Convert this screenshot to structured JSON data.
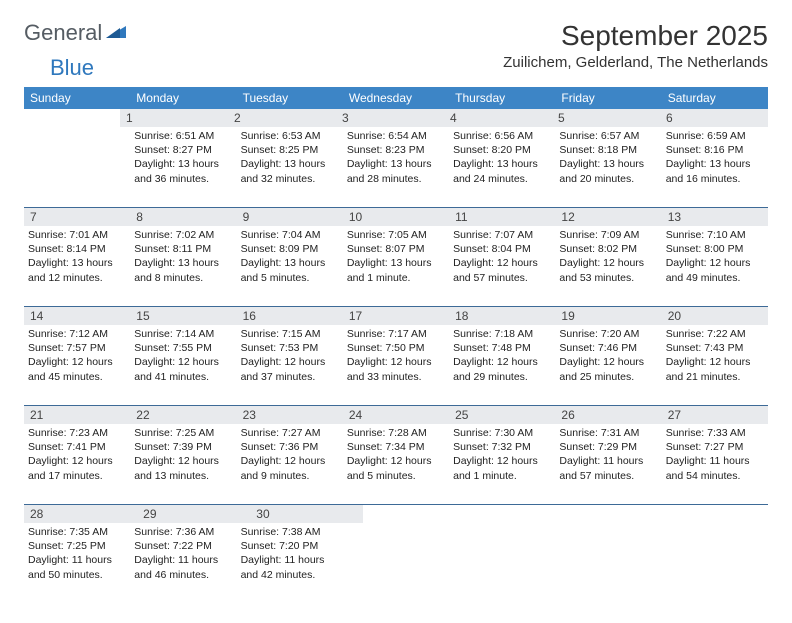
{
  "logo": {
    "general": "General",
    "blue": "Blue"
  },
  "header": {
    "title": "September 2025",
    "location": "Zuilichem, Gelderland, The Netherlands"
  },
  "colors": {
    "header_bg": "#3d85c6",
    "header_text": "#ffffff",
    "daynum_bg": "#e8eaed",
    "week_border": "#3d6a97",
    "logo_general": "#555c63",
    "logo_blue": "#2f78bd"
  },
  "dayNames": [
    "Sunday",
    "Monday",
    "Tuesday",
    "Wednesday",
    "Thursday",
    "Friday",
    "Saturday"
  ],
  "weeks": [
    {
      "nums": [
        "",
        "1",
        "2",
        "3",
        "4",
        "5",
        "6"
      ],
      "cells": [
        {
          "sunrise": "",
          "sunset": "",
          "daylight": ""
        },
        {
          "sunrise": "Sunrise: 6:51 AM",
          "sunset": "Sunset: 8:27 PM",
          "daylight": "Daylight: 13 hours and 36 minutes."
        },
        {
          "sunrise": "Sunrise: 6:53 AM",
          "sunset": "Sunset: 8:25 PM",
          "daylight": "Daylight: 13 hours and 32 minutes."
        },
        {
          "sunrise": "Sunrise: 6:54 AM",
          "sunset": "Sunset: 8:23 PM",
          "daylight": "Daylight: 13 hours and 28 minutes."
        },
        {
          "sunrise": "Sunrise: 6:56 AM",
          "sunset": "Sunset: 8:20 PM",
          "daylight": "Daylight: 13 hours and 24 minutes."
        },
        {
          "sunrise": "Sunrise: 6:57 AM",
          "sunset": "Sunset: 8:18 PM",
          "daylight": "Daylight: 13 hours and 20 minutes."
        },
        {
          "sunrise": "Sunrise: 6:59 AM",
          "sunset": "Sunset: 8:16 PM",
          "daylight": "Daylight: 13 hours and 16 minutes."
        }
      ]
    },
    {
      "nums": [
        "7",
        "8",
        "9",
        "10",
        "11",
        "12",
        "13"
      ],
      "cells": [
        {
          "sunrise": "Sunrise: 7:01 AM",
          "sunset": "Sunset: 8:14 PM",
          "daylight": "Daylight: 13 hours and 12 minutes."
        },
        {
          "sunrise": "Sunrise: 7:02 AM",
          "sunset": "Sunset: 8:11 PM",
          "daylight": "Daylight: 13 hours and 8 minutes."
        },
        {
          "sunrise": "Sunrise: 7:04 AM",
          "sunset": "Sunset: 8:09 PM",
          "daylight": "Daylight: 13 hours and 5 minutes."
        },
        {
          "sunrise": "Sunrise: 7:05 AM",
          "sunset": "Sunset: 8:07 PM",
          "daylight": "Daylight: 13 hours and 1 minute."
        },
        {
          "sunrise": "Sunrise: 7:07 AM",
          "sunset": "Sunset: 8:04 PM",
          "daylight": "Daylight: 12 hours and 57 minutes."
        },
        {
          "sunrise": "Sunrise: 7:09 AM",
          "sunset": "Sunset: 8:02 PM",
          "daylight": "Daylight: 12 hours and 53 minutes."
        },
        {
          "sunrise": "Sunrise: 7:10 AM",
          "sunset": "Sunset: 8:00 PM",
          "daylight": "Daylight: 12 hours and 49 minutes."
        }
      ]
    },
    {
      "nums": [
        "14",
        "15",
        "16",
        "17",
        "18",
        "19",
        "20"
      ],
      "cells": [
        {
          "sunrise": "Sunrise: 7:12 AM",
          "sunset": "Sunset: 7:57 PM",
          "daylight": "Daylight: 12 hours and 45 minutes."
        },
        {
          "sunrise": "Sunrise: 7:14 AM",
          "sunset": "Sunset: 7:55 PM",
          "daylight": "Daylight: 12 hours and 41 minutes."
        },
        {
          "sunrise": "Sunrise: 7:15 AM",
          "sunset": "Sunset: 7:53 PM",
          "daylight": "Daylight: 12 hours and 37 minutes."
        },
        {
          "sunrise": "Sunrise: 7:17 AM",
          "sunset": "Sunset: 7:50 PM",
          "daylight": "Daylight: 12 hours and 33 minutes."
        },
        {
          "sunrise": "Sunrise: 7:18 AM",
          "sunset": "Sunset: 7:48 PM",
          "daylight": "Daylight: 12 hours and 29 minutes."
        },
        {
          "sunrise": "Sunrise: 7:20 AM",
          "sunset": "Sunset: 7:46 PM",
          "daylight": "Daylight: 12 hours and 25 minutes."
        },
        {
          "sunrise": "Sunrise: 7:22 AM",
          "sunset": "Sunset: 7:43 PM",
          "daylight": "Daylight: 12 hours and 21 minutes."
        }
      ]
    },
    {
      "nums": [
        "21",
        "22",
        "23",
        "24",
        "25",
        "26",
        "27"
      ],
      "cells": [
        {
          "sunrise": "Sunrise: 7:23 AM",
          "sunset": "Sunset: 7:41 PM",
          "daylight": "Daylight: 12 hours and 17 minutes."
        },
        {
          "sunrise": "Sunrise: 7:25 AM",
          "sunset": "Sunset: 7:39 PM",
          "daylight": "Daylight: 12 hours and 13 minutes."
        },
        {
          "sunrise": "Sunrise: 7:27 AM",
          "sunset": "Sunset: 7:36 PM",
          "daylight": "Daylight: 12 hours and 9 minutes."
        },
        {
          "sunrise": "Sunrise: 7:28 AM",
          "sunset": "Sunset: 7:34 PM",
          "daylight": "Daylight: 12 hours and 5 minutes."
        },
        {
          "sunrise": "Sunrise: 7:30 AM",
          "sunset": "Sunset: 7:32 PM",
          "daylight": "Daylight: 12 hours and 1 minute."
        },
        {
          "sunrise": "Sunrise: 7:31 AM",
          "sunset": "Sunset: 7:29 PM",
          "daylight": "Daylight: 11 hours and 57 minutes."
        },
        {
          "sunrise": "Sunrise: 7:33 AM",
          "sunset": "Sunset: 7:27 PM",
          "daylight": "Daylight: 11 hours and 54 minutes."
        }
      ]
    },
    {
      "nums": [
        "28",
        "29",
        "30",
        "",
        "",
        "",
        ""
      ],
      "cells": [
        {
          "sunrise": "Sunrise: 7:35 AM",
          "sunset": "Sunset: 7:25 PM",
          "daylight": "Daylight: 11 hours and 50 minutes."
        },
        {
          "sunrise": "Sunrise: 7:36 AM",
          "sunset": "Sunset: 7:22 PM",
          "daylight": "Daylight: 11 hours and 46 minutes."
        },
        {
          "sunrise": "Sunrise: 7:38 AM",
          "sunset": "Sunset: 7:20 PM",
          "daylight": "Daylight: 11 hours and 42 minutes."
        },
        {
          "sunrise": "",
          "sunset": "",
          "daylight": ""
        },
        {
          "sunrise": "",
          "sunset": "",
          "daylight": ""
        },
        {
          "sunrise": "",
          "sunset": "",
          "daylight": ""
        },
        {
          "sunrise": "",
          "sunset": "",
          "daylight": ""
        }
      ]
    }
  ]
}
